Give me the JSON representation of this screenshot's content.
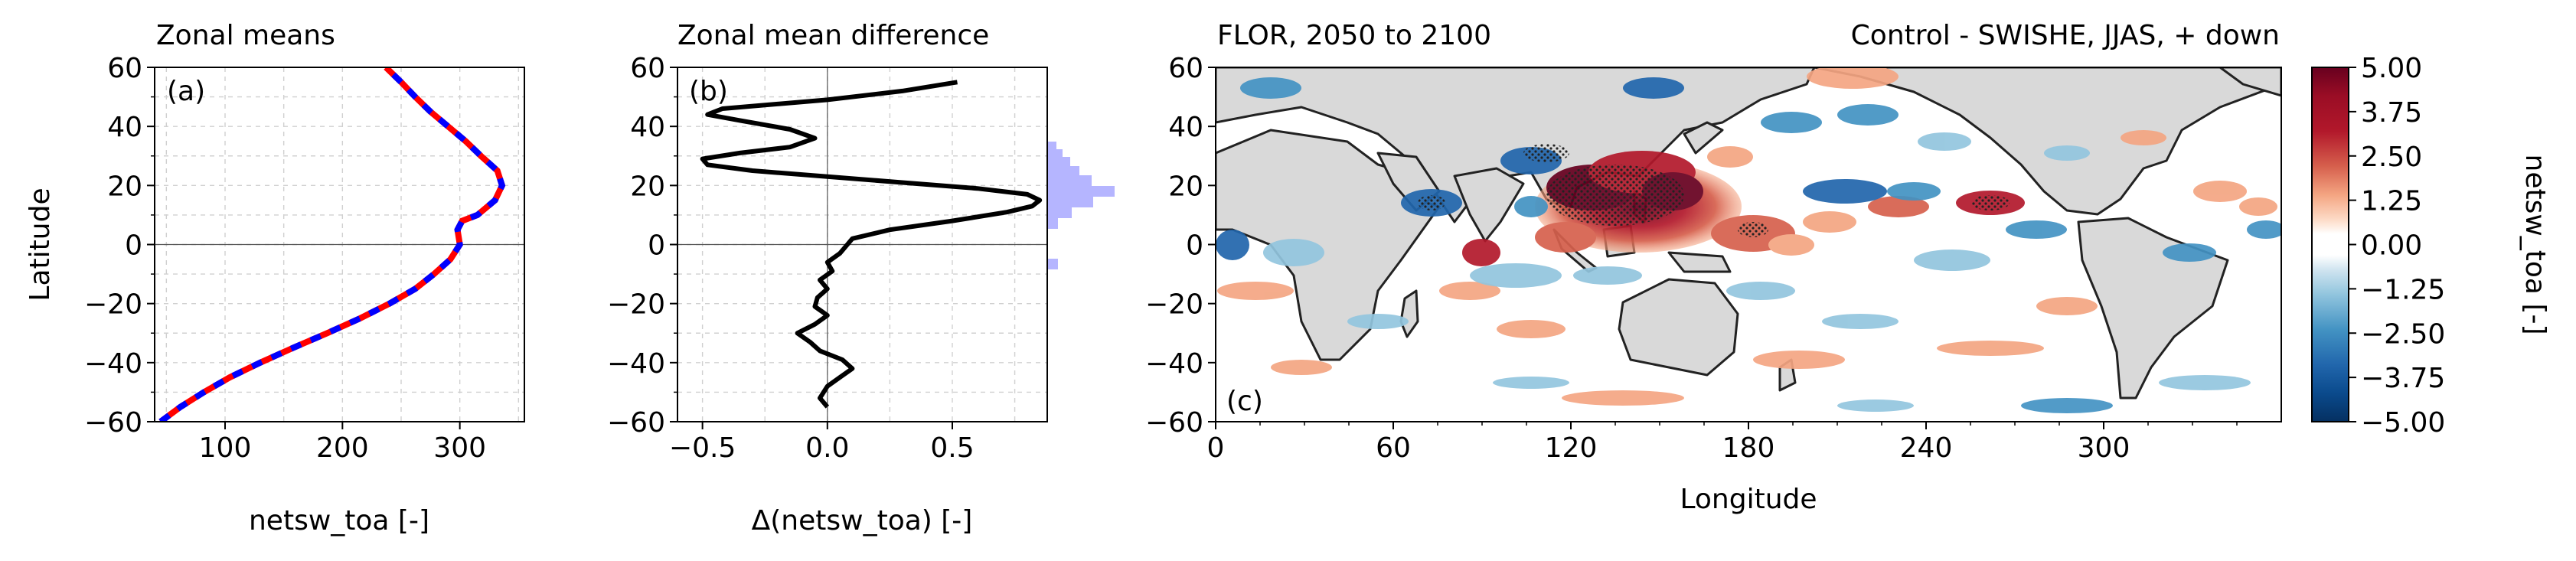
{
  "chart_data": [
    {
      "type": "line",
      "panel": "(a)",
      "title": "Zonal means",
      "xlabel": "netsw_toa [-]",
      "ylabel": "Latitude",
      "xlim": [
        40,
        355
      ],
      "ylim": [
        -60,
        60
      ],
      "xticks": [
        100,
        200,
        300
      ],
      "yticks": [
        -60,
        -40,
        -20,
        0,
        20,
        40,
        60
      ],
      "grid": true,
      "series": [
        {
          "color": "#ff0000",
          "lat": [
            -60,
            -55,
            -50,
            -45,
            -40,
            -35,
            -30,
            -25,
            -20,
            -15,
            -10,
            -5,
            0,
            5,
            8,
            10,
            15,
            20,
            25,
            30,
            35,
            40,
            45,
            50,
            55,
            60
          ],
          "value": [
            45,
            62,
            82,
            104,
            130,
            158,
            187,
            215,
            240,
            262,
            278,
            292,
            300,
            298,
            302,
            315,
            330,
            336,
            332,
            318,
            305,
            290,
            275,
            262,
            250,
            237
          ]
        },
        {
          "color": "#0000ff",
          "lat": [
            -60,
            -55,
            -50,
            -45,
            -40,
            -35,
            -30,
            -25,
            -20,
            -15,
            -10,
            -5,
            0,
            5,
            8,
            10,
            15,
            20,
            25,
            30,
            35,
            40,
            45,
            50,
            55,
            60
          ],
          "value": [
            45,
            62,
            82,
            104,
            130,
            158,
            187,
            215,
            240,
            262,
            278,
            292,
            300,
            298,
            302,
            315,
            330,
            336,
            332,
            318,
            305,
            290,
            275,
            262,
            250,
            237
          ]
        }
      ]
    },
    {
      "type": "line",
      "panel": "(b)",
      "title": "Zonal mean difference",
      "xlabel": "Δ(netsw_toa) [-]",
      "ylabel": "",
      "xlim": [
        -0.6,
        0.88
      ],
      "ylim": [
        -60,
        60
      ],
      "xticks": [
        -0.5,
        0.0,
        0.5
      ],
      "xticklabels": [
        "−0.5",
        "0.0",
        "0.5"
      ],
      "yticks": [
        -60,
        -40,
        -20,
        0,
        20,
        40,
        60
      ],
      "grid": true,
      "series": [
        {
          "color": "#000000",
          "lat": [
            -55,
            -52,
            -48,
            -45,
            -42,
            -39,
            -36,
            -33,
            -30,
            -27,
            -24,
            -21,
            -18,
            -15,
            -12,
            -9,
            -6,
            -3,
            0,
            2,
            5,
            8,
            11,
            13,
            15,
            17,
            19,
            21,
            23,
            25,
            27,
            29,
            31,
            33,
            36,
            39,
            42,
            44,
            46,
            49,
            52,
            55
          ],
          "value": [
            0.0,
            -0.03,
            0.0,
            0.05,
            0.1,
            0.06,
            -0.03,
            -0.07,
            -0.12,
            -0.05,
            0.0,
            -0.05,
            -0.04,
            0.0,
            -0.03,
            0.02,
            0.0,
            0.05,
            0.08,
            0.1,
            0.25,
            0.5,
            0.72,
            0.82,
            0.85,
            0.8,
            0.6,
            0.3,
            0.0,
            -0.3,
            -0.48,
            -0.5,
            -0.35,
            -0.15,
            -0.05,
            -0.15,
            -0.35,
            -0.48,
            -0.42,
            0.0,
            0.3,
            0.52
          ]
        }
      ]
    },
    {
      "type": "heatmap",
      "panel": "(c)",
      "title": "FLOR, 2050 to 2100",
      "title_right": "Control - SWISHE, JJAS, + down",
      "xlabel": "Longitude",
      "ylabel": "",
      "xlim": [
        0,
        360
      ],
      "ylim": [
        -60,
        60
      ],
      "xticks": [
        0,
        60,
        120,
        180,
        240,
        300
      ],
      "yticks": [
        -60,
        -40,
        -20,
        0,
        20,
        40,
        60
      ],
      "colorbar": {
        "label": "netsw_toa [-]",
        "range": [
          -5.0,
          5.0
        ],
        "ticks": [
          "5.00",
          "3.75",
          "2.50",
          "1.25",
          "0.00",
          "−1.25",
          "−2.50",
          "−3.75",
          "−5.00"
        ],
        "colors": [
          "#67001f",
          "#9a0d25",
          "#b2182b",
          "#d6604d",
          "#f4a582",
          "#fddbc7",
          "#ffffff",
          "#ffffff",
          "#d1e5f0",
          "#92c5de",
          "#4393c3",
          "#2166ac",
          "#0a4a8c",
          "#053061"
        ]
      }
    }
  ]
}
